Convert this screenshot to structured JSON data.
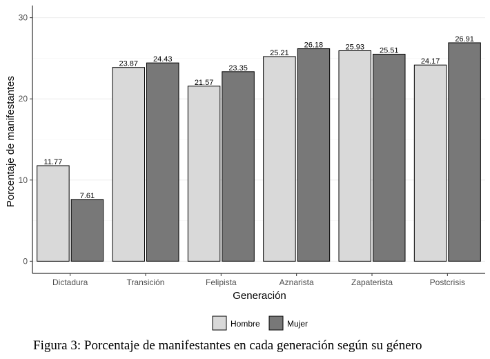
{
  "caption": "Figura 3: Porcentaje de manifestantes en cada generación según su género",
  "chart_data": {
    "type": "bar",
    "title": "",
    "xlabel": "Generación",
    "ylabel": "Porcentaje de manifestantes",
    "categories": [
      "Dictadura",
      "Transición",
      "Felipista",
      "Aznarista",
      "Zapaterista",
      "Postcrisis"
    ],
    "series": [
      {
        "name": "Hombre",
        "color": "#d9d9d9",
        "values": [
          11.77,
          23.87,
          21.57,
          25.21,
          25.93,
          24.17
        ]
      },
      {
        "name": "Mujer",
        "color": "#787878",
        "values": [
          7.61,
          24.43,
          23.35,
          26.18,
          25.51,
          26.91
        ]
      }
    ],
    "ylim": [
      -1.5,
      31.5
    ],
    "yticks": [
      0,
      10,
      20,
      30
    ],
    "grid": true,
    "legend_position": "bottom"
  }
}
